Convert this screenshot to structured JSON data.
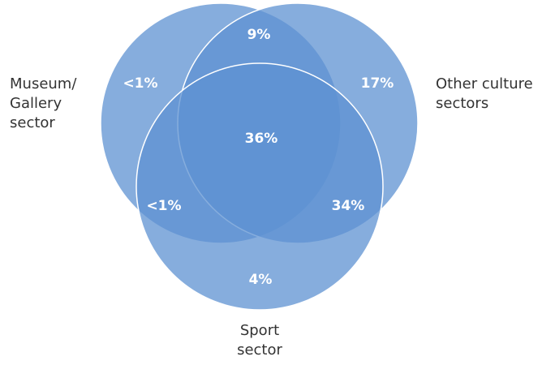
{
  "colors": {
    "circle_fill": "#5e92d2",
    "circle_stroke": "#ffffff",
    "label_text": "#333333",
    "value_text": "#ffffff"
  },
  "sets": {
    "museum": {
      "lines": [
        "Museum/",
        "Gallery",
        "sector"
      ]
    },
    "other_culture": {
      "lines": [
        "Other culture",
        "sectors"
      ]
    },
    "sport": {
      "lines": [
        "Sport",
        "sector"
      ]
    }
  },
  "regions": {
    "museum_and_other": "9%",
    "museum_only": "<1%",
    "other_only": "17%",
    "all_three": "36%",
    "museum_and_sport": "<1%",
    "other_and_sport": "34%",
    "sport_only": "4%"
  }
}
